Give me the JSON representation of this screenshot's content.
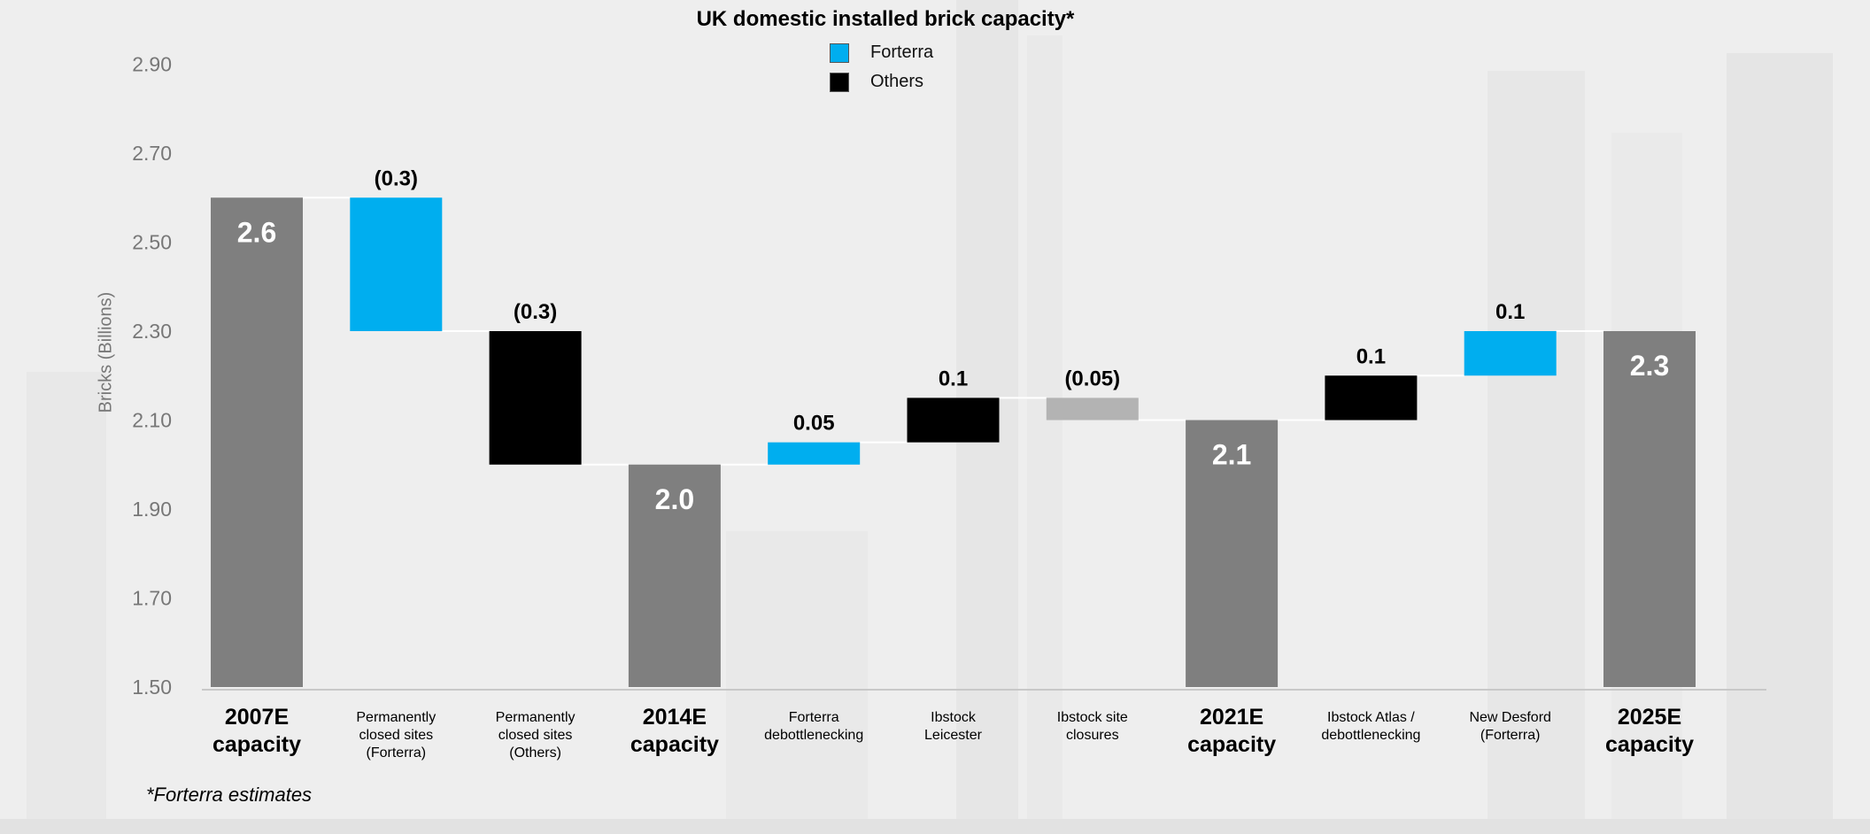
{
  "chart_data": {
    "type": "bar",
    "subtype": "waterfall",
    "title": "UK domestic installed brick capacity*",
    "ylabel": "Bricks (Billions)",
    "xlabel": "",
    "ylim": [
      1.5,
      3.0
    ],
    "yticks": [
      "1.50",
      "1.70",
      "1.90",
      "2.10",
      "2.30",
      "2.50",
      "2.70",
      "2.90"
    ],
    "grid": false,
    "legend_position": "top-center",
    "legend": [
      {
        "name": "Forterra",
        "color": "#00AEEF"
      },
      {
        "name": "Others",
        "color": "#000000"
      }
    ],
    "bars": [
      {
        "category": "2007E\ncapacity",
        "kind": "total",
        "base": 1.5,
        "top": 2.6,
        "label": "2.6",
        "color": "#7f7f7f"
      },
      {
        "category": "Permanently\nclosed sites\n(Forterra)",
        "kind": "delta",
        "base": 2.3,
        "top": 2.6,
        "label": "(0.3)",
        "color": "#00AEEF"
      },
      {
        "category": "Permanently\nclosed sites\n(Others)",
        "kind": "delta",
        "base": 2.0,
        "top": 2.3,
        "label": "(0.3)",
        "color": "#000000"
      },
      {
        "category": "2014E\ncapacity",
        "kind": "total",
        "base": 1.5,
        "top": 2.0,
        "label": "2.0",
        "color": "#7f7f7f"
      },
      {
        "category": "Forterra\ndebottlenecking",
        "kind": "delta",
        "base": 2.0,
        "top": 2.05,
        "label": "0.05",
        "color": "#00AEEF"
      },
      {
        "category": "Ibstock\nLeicester",
        "kind": "delta",
        "base": 2.05,
        "top": 2.15,
        "label": "0.1",
        "color": "#000000"
      },
      {
        "category": "Ibstock site\nclosures",
        "kind": "delta",
        "base": 2.1,
        "top": 2.15,
        "label": "(0.05)",
        "color": "#b3b3b3"
      },
      {
        "category": "2021E\ncapacity",
        "kind": "total",
        "base": 1.5,
        "top": 2.1,
        "label": "2.1",
        "color": "#7f7f7f"
      },
      {
        "category": "Ibstock Atlas /\ndebottlenecking",
        "kind": "delta",
        "base": 2.1,
        "top": 2.2,
        "label": "0.1",
        "color": "#000000"
      },
      {
        "category": "New Desford\n(Forterra)",
        "kind": "delta",
        "base": 2.2,
        "top": 2.3,
        "label": "0.1",
        "color": "#00AEEF"
      },
      {
        "category": "2025E\ncapacity",
        "kind": "total",
        "base": 1.5,
        "top": 2.3,
        "label": "2.3",
        "color": "#7f7f7f"
      }
    ]
  },
  "footnote": "*Forterra estimates"
}
